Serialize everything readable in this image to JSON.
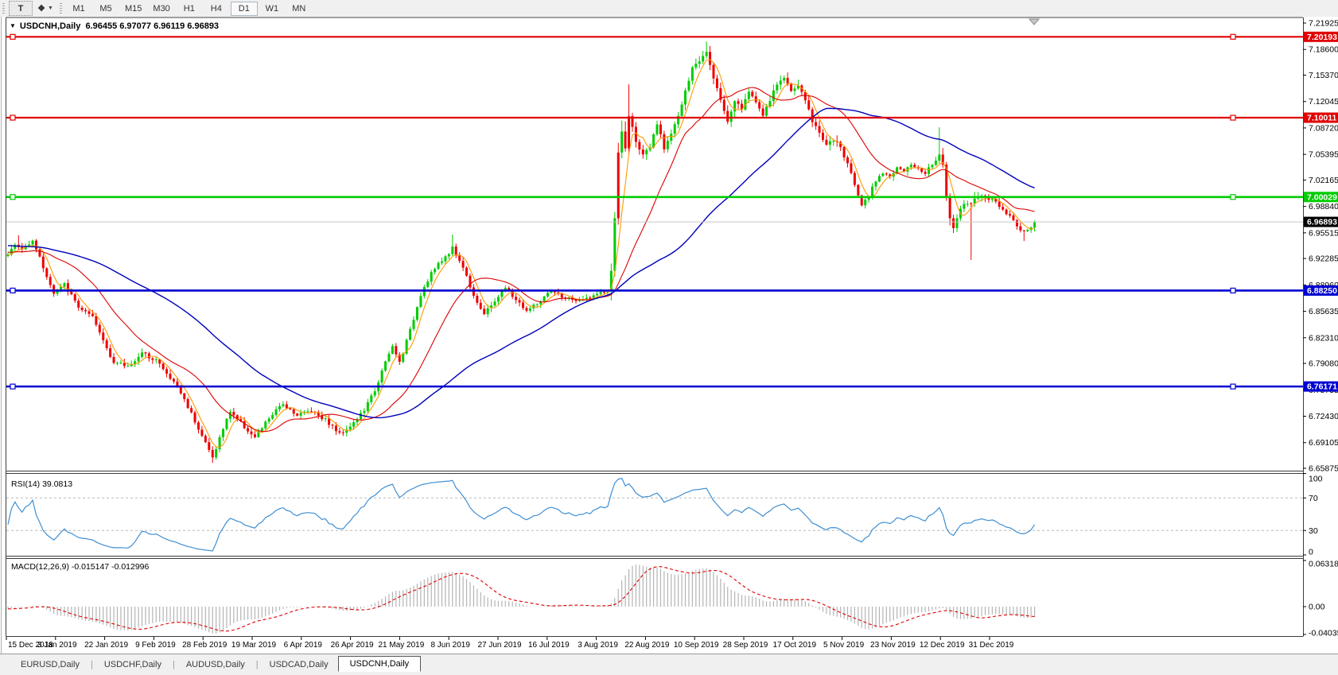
{
  "ui": {
    "toolbar": {
      "tools": [
        {
          "name": "text-tool",
          "glyph": "T"
        },
        {
          "name": "cycle-lines-tool",
          "glyph": "❖",
          "caret": "▼"
        }
      ],
      "timeframes": [
        {
          "label": "M1"
        },
        {
          "label": "M5"
        },
        {
          "label": "M15"
        },
        {
          "label": "M30"
        },
        {
          "label": "H1"
        },
        {
          "label": "H4"
        },
        {
          "label": "D1",
          "active": true
        },
        {
          "label": "W1"
        },
        {
          "label": "MN"
        }
      ]
    },
    "header": {
      "display": "USDCNH,Daily  6.96455 6.97077 6.96119 6.96893",
      "dropdown_glyph": "▼"
    },
    "tabs": [
      {
        "label": "EURUSD,Daily"
      },
      {
        "label": "USDCHF,Daily"
      },
      {
        "label": "AUDUSD,Daily"
      },
      {
        "label": "USDCAD,Daily"
      },
      {
        "label": "USDCNH,Daily",
        "active": true
      }
    ]
  },
  "chart_data": {
    "type": "candlestick",
    "symbol": "USDCNH",
    "timeframe": "Daily",
    "ohlc_current": {
      "open": 6.96455,
      "high": 6.97077,
      "low": 6.96119,
      "close": 6.96893
    },
    "price_axis": {
      "top": 7.21925,
      "bottom": 6.65875,
      "ticks": [
        "7.21925",
        "7.18600",
        "7.15370",
        "7.12045",
        "7.08720",
        "7.05395",
        "7.02165",
        "6.98840",
        "6.95515",
        "6.92285",
        "6.88960",
        "6.85635",
        "6.82310",
        "6.79080",
        "6.75755",
        "6.72430",
        "6.69105",
        "6.65875"
      ]
    },
    "x_labels": [
      "15 Dec 2018",
      "3 Jan 2019",
      "22 Jan 2019",
      "9 Feb 2019",
      "28 Feb 2019",
      "19 Mar 2019",
      "6 Apr 2019",
      "26 Apr 2019",
      "21 May 2019",
      "8 Jun 2019",
      "27 Jun 2019",
      "16 Jul 2019",
      "3 Aug 2019",
      "22 Aug 2019",
      "10 Sep 2019",
      "28 Sep 2019",
      "17 Oct 2019",
      "5 Nov 2019",
      "23 Nov 2019",
      "12 Dec 2019",
      "31 Dec 2019"
    ],
    "candles_count": 292,
    "colors": {
      "bull": "#00cc00",
      "bear": "#ee0000",
      "ma_fast": "#ff9900",
      "ma_mid": "#dd0000",
      "ma_slow": "#0000bb",
      "grid_dash": "#b8b8b8",
      "current_price_line": "#c8c8c8"
    },
    "close_anchors": [
      [
        0,
        6.928
      ],
      [
        2,
        6.94
      ],
      [
        4,
        6.934
      ],
      [
        7,
        6.947
      ],
      [
        10,
        6.912
      ],
      [
        13,
        6.878
      ],
      [
        16,
        6.89
      ],
      [
        20,
        6.862
      ],
      [
        24,
        6.848
      ],
      [
        27,
        6.82
      ],
      [
        30,
        6.792
      ],
      [
        34,
        6.787
      ],
      [
        38,
        6.803
      ],
      [
        42,
        6.796
      ],
      [
        45,
        6.777
      ],
      [
        48,
        6.762
      ],
      [
        52,
        6.728
      ],
      [
        55,
        6.7
      ],
      [
        58,
        6.672
      ],
      [
        60,
        6.697
      ],
      [
        63,
        6.731
      ],
      [
        66,
        6.716
      ],
      [
        70,
        6.697
      ],
      [
        74,
        6.722
      ],
      [
        78,
        6.74
      ],
      [
        82,
        6.726
      ],
      [
        86,
        6.732
      ],
      [
        90,
        6.72
      ],
      [
        94,
        6.702
      ],
      [
        98,
        6.716
      ],
      [
        101,
        6.732
      ],
      [
        104,
        6.757
      ],
      [
        107,
        6.792
      ],
      [
        109,
        6.812
      ],
      [
        111,
        6.792
      ],
      [
        114,
        6.832
      ],
      [
        117,
        6.878
      ],
      [
        120,
        6.905
      ],
      [
        123,
        6.92
      ],
      [
        126,
        6.936
      ],
      [
        129,
        6.912
      ],
      [
        132,
        6.877
      ],
      [
        135,
        6.852
      ],
      [
        138,
        6.87
      ],
      [
        141,
        6.886
      ],
      [
        144,
        6.871
      ],
      [
        147,
        6.857
      ],
      [
        150,
        6.866
      ],
      [
        154,
        6.881
      ],
      [
        158,
        6.873
      ],
      [
        162,
        6.869
      ],
      [
        166,
        6.876
      ],
      [
        170,
        6.882
      ],
      [
        171,
        6.905
      ],
      [
        172,
        6.975
      ],
      [
        173,
        7.055
      ],
      [
        174,
        7.082
      ],
      [
        175,
        7.062
      ],
      [
        176,
        7.102
      ],
      [
        178,
        7.072
      ],
      [
        180,
        7.052
      ],
      [
        182,
        7.062
      ],
      [
        184,
        7.092
      ],
      [
        186,
        7.062
      ],
      [
        188,
        7.082
      ],
      [
        190,
        7.102
      ],
      [
        192,
        7.132
      ],
      [
        194,
        7.162
      ],
      [
        196,
        7.172
      ],
      [
        198,
        7.185
      ],
      [
        200,
        7.152
      ],
      [
        202,
        7.122
      ],
      [
        204,
        7.096
      ],
      [
        206,
        7.122
      ],
      [
        208,
        7.112
      ],
      [
        210,
        7.132
      ],
      [
        212,
        7.122
      ],
      [
        214,
        7.102
      ],
      [
        216,
        7.122
      ],
      [
        218,
        7.142
      ],
      [
        220,
        7.152
      ],
      [
        222,
        7.132
      ],
      [
        224,
        7.142
      ],
      [
        226,
        7.122
      ],
      [
        228,
        7.096
      ],
      [
        230,
        7.082
      ],
      [
        232,
        7.066
      ],
      [
        234,
        7.072
      ],
      [
        236,
        7.062
      ],
      [
        238,
        7.042
      ],
      [
        240,
        7.016
      ],
      [
        242,
        6.992
      ],
      [
        244,
        7.002
      ],
      [
        246,
        7.022
      ],
      [
        248,
        7.032
      ],
      [
        250,
        7.026
      ],
      [
        252,
        7.036
      ],
      [
        254,
        7.031
      ],
      [
        256,
        7.041
      ],
      [
        258,
        7.036
      ],
      [
        260,
        7.031
      ],
      [
        262,
        7.041
      ],
      [
        264,
        7.052
      ],
      [
        265,
        7.042
      ],
      [
        266,
        7.002
      ],
      [
        267,
        6.976
      ],
      [
        268,
        6.962
      ],
      [
        269,
        6.976
      ],
      [
        270,
        6.986
      ],
      [
        272,
        6.992
      ],
      [
        274,
        6.996
      ],
      [
        276,
        7.001
      ],
      [
        278,
        6.998
      ],
      [
        280,
        6.994
      ],
      [
        282,
        6.986
      ],
      [
        284,
        6.976
      ],
      [
        286,
        6.963
      ],
      [
        288,
        6.956
      ],
      [
        290,
        6.962
      ],
      [
        291,
        6.9689
      ]
    ],
    "wick_overrides": [
      [
        3,
        "high",
        6.952
      ],
      [
        58,
        "low",
        6.6655
      ],
      [
        126,
        "high",
        6.953
      ],
      [
        176,
        "high",
        7.142
      ],
      [
        198,
        "high",
        7.196
      ],
      [
        264,
        "high",
        7.088
      ],
      [
        268,
        "low",
        6.955
      ],
      [
        273,
        "low",
        6.921
      ],
      [
        288,
        "low",
        6.9448
      ]
    ],
    "bear_color_overrides": [
      173,
      176,
      273
    ],
    "moving_averages": [
      {
        "period": 5,
        "color": "#ff9900"
      },
      {
        "period": 20,
        "color": "#dd0000"
      },
      {
        "period": 60,
        "color": "#0000bb"
      }
    ],
    "horizontal_lines": [
      {
        "price": 7.20193,
        "label": "7.20193",
        "color": "#e00000"
      },
      {
        "price": 7.10011,
        "label": "7.10011",
        "color": "#e00000"
      },
      {
        "price": 7.00029,
        "label": "7.00029",
        "color": "#00cc00"
      },
      {
        "price": 6.8825,
        "label": "6.88250",
        "color": "#0000d0"
      },
      {
        "price": 6.76171,
        "label": "6.76171",
        "color": "#0000d0"
      }
    ],
    "current_price": {
      "value": 6.96893,
      "label": "6.96893",
      "label_bg": "#000000"
    },
    "indicators": [
      {
        "name": "RSI",
        "params": "14",
        "value": "39.0813",
        "label": "RSI(14) 39.0813",
        "levels": [
          70,
          30
        ],
        "y_ticks": [
          "100",
          "70",
          "30",
          "0"
        ],
        "line_color": "#3f8fd2"
      },
      {
        "name": "MACD",
        "params": "12,26,9",
        "macd_value": "-0.015147",
        "signal_value": "-0.012996",
        "label": "MACD(12,26,9) -0.015147 -0.012996",
        "y_ticks": [
          "0.063184",
          "0.00",
          "-0.040355"
        ],
        "y_max": 0.063184,
        "y_min": -0.040355,
        "histogram_color": "#b4b4b4",
        "signal_color": "#dd0000"
      }
    ]
  }
}
